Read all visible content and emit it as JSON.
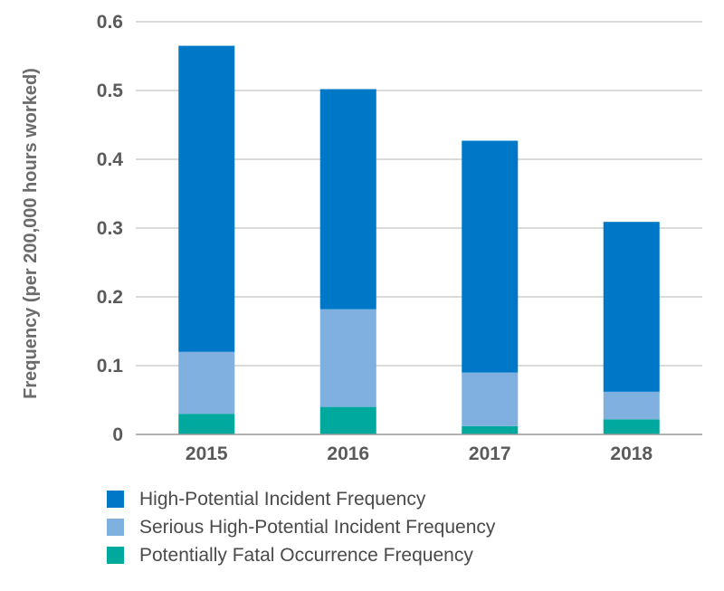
{
  "chart_data": {
    "type": "bar",
    "stacked": true,
    "categories": [
      "2015",
      "2016",
      "2017",
      "2018"
    ],
    "series": [
      {
        "name": "Potentially Fatal Occurrence Frequency",
        "color": "#00a99d",
        "values": [
          0.03,
          0.04,
          0.012,
          0.022
        ]
      },
      {
        "name": "Serious High-Potential Incident Frequency",
        "color": "#7fb0e0",
        "values": [
          0.09,
          0.142,
          0.078,
          0.04
        ]
      },
      {
        "name": "High-Potential Incident Frequency",
        "color": "#0078c8",
        "values": [
          0.445,
          0.32,
          0.337,
          0.247
        ]
      }
    ],
    "ylabel": "Frequency (per 200,000 hours worked)",
    "xlabel": "",
    "title": "",
    "ylim": [
      0,
      0.6
    ],
    "yticks": [
      "0",
      "0.1",
      "0.2",
      "0.3",
      "0.4",
      "0.5",
      "0.6"
    ],
    "grid": true,
    "legend_position": "bottom-left"
  },
  "legend": {
    "items": [
      {
        "label": "High-Potential Incident Frequency",
        "color": "#0078c8"
      },
      {
        "label": "Serious High-Potential Incident Frequency",
        "color": "#7fb0e0"
      },
      {
        "label": "Potentially Fatal Occurrence Frequency",
        "color": "#00a99d"
      }
    ]
  }
}
